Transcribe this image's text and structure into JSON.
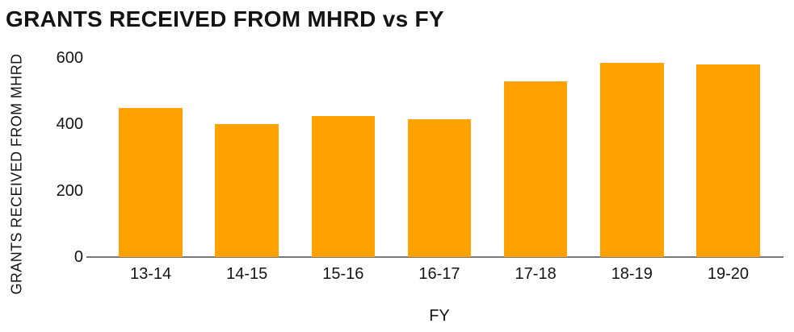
{
  "chart_data": {
    "type": "bar",
    "title": "GRANTS RECEIVED FROM MHRD vs FY",
    "categories": [
      "13-14",
      "14-15",
      "15-16",
      "16-17",
      "17-18",
      "18-19",
      "19-20"
    ],
    "values": [
      450,
      400,
      425,
      415,
      530,
      585,
      580
    ],
    "xlabel": "FY",
    "ylabel": "GRANTS RECEIVED FROM MHRD",
    "ylim": [
      0,
      600
    ],
    "yticks": [
      0,
      200,
      400,
      600
    ],
    "grid": false,
    "legend": false,
    "bar_color": "#FFA200",
    "axis_line_color": "#787878",
    "text_color": "#141414",
    "background_color": "#FFFFFF"
  }
}
